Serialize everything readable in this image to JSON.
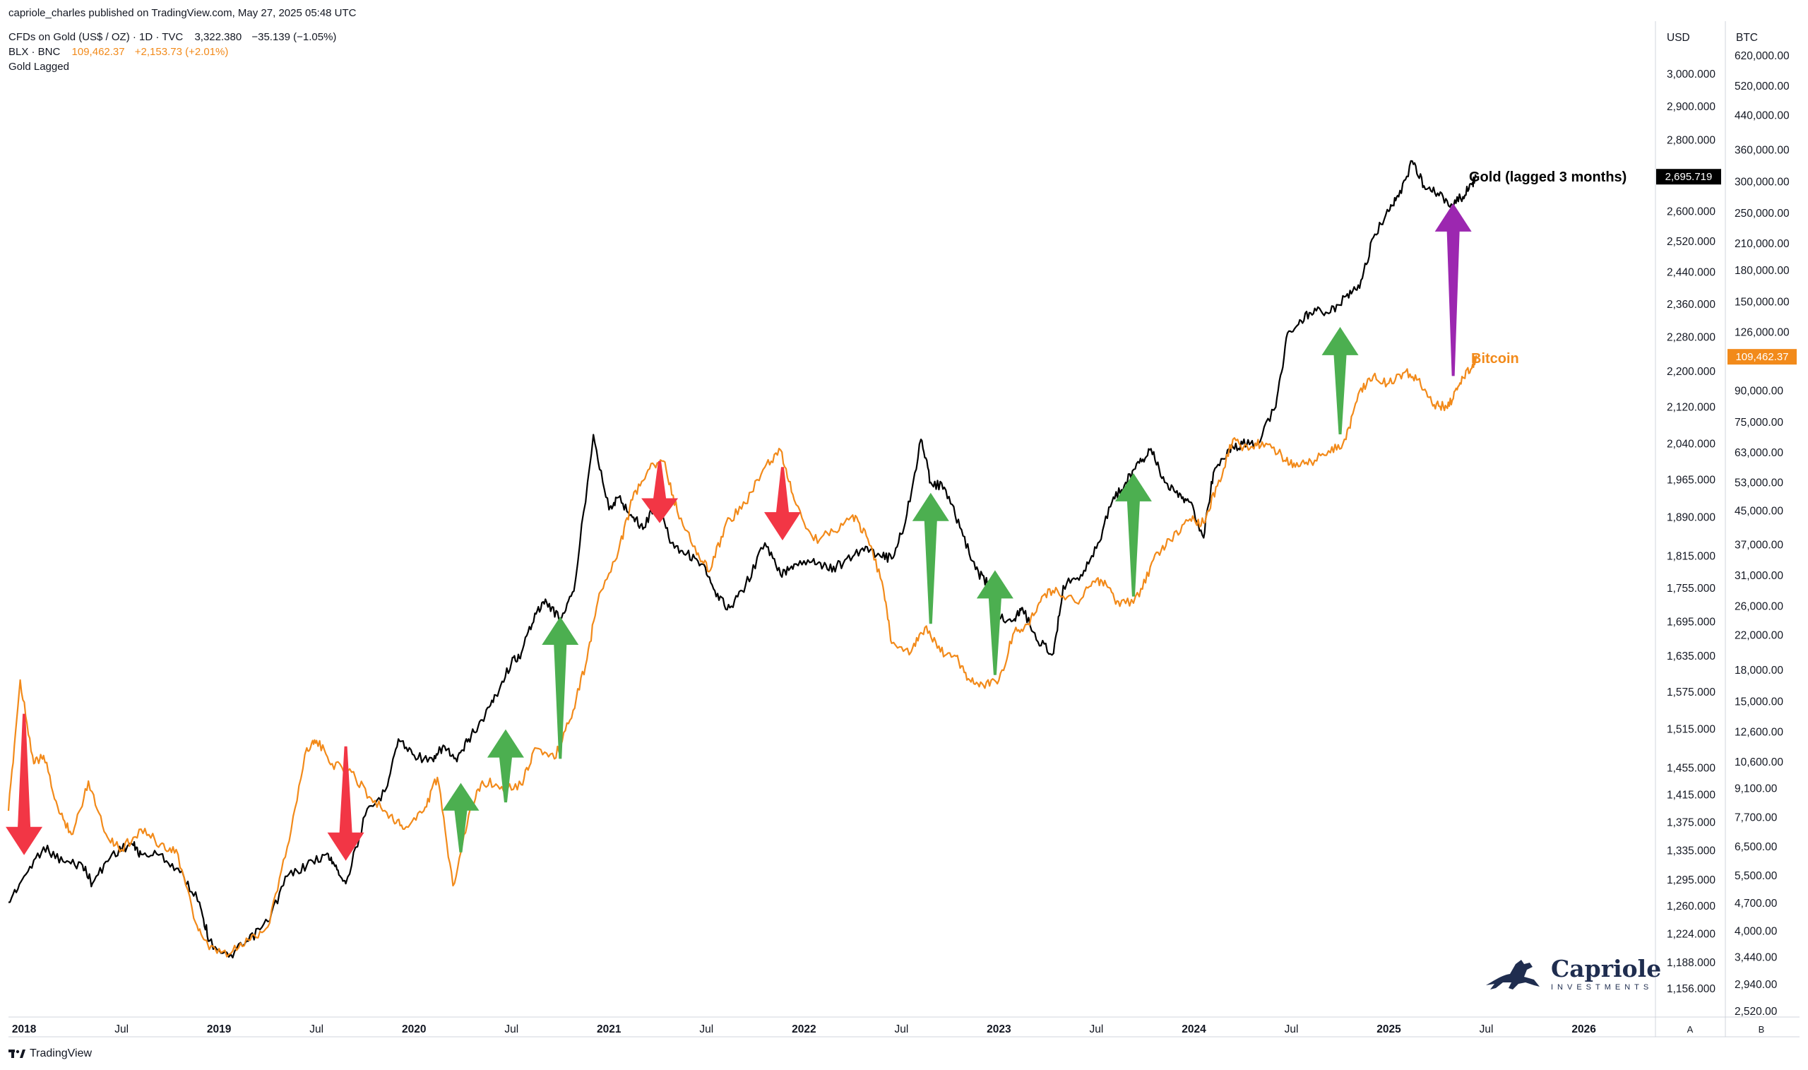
{
  "publisher": "capriole_charles published on TradingView.com, May 27, 2025 05:48 UTC",
  "legend": {
    "gold": {
      "name": "CFDs on Gold (US$ / OZ) · 1D · TVC",
      "price": "3,322.380",
      "change": "−35.139 (−1.05%)"
    },
    "btc": {
      "name": "BLX · BNC",
      "price": "109,462.37",
      "change": "+2,153.73 (+2.01%)"
    },
    "indicator": "Gold Lagged"
  },
  "axis": {
    "usd_label": "USD",
    "btc_label": "BTC",
    "left_foot": "A",
    "right_foot": "B"
  },
  "annotations": {
    "gold_label": "Gold (lagged 3 months)",
    "btc_label": "Bitcoin",
    "question": "?"
  },
  "brand": {
    "name": "Capriole",
    "sub": "INVESTMENTS",
    "tv": "TradingView"
  },
  "colors": {
    "gold": "#000000",
    "btc": "#f28a1a",
    "up": "#4caf50",
    "down": "#f23645",
    "question": "#9c27b0"
  },
  "chart_data": {
    "type": "line",
    "usd_ticks": [
      "3,000.000",
      "2,900.000",
      "2,800.000",
      "2,600.000",
      "2,520.000",
      "2,440.000",
      "2,360.000",
      "2,280.000",
      "2,200.000",
      "2,120.000",
      "2,040.000",
      "1,965.000",
      "1,890.000",
      "1,815.000",
      "1,755.000",
      "1,695.000",
      "1,635.000",
      "1,575.000",
      "1,515.000",
      "1,455.000",
      "1,415.000",
      "1,375.000",
      "1,335.000",
      "1,295.000",
      "1,260.000",
      "1,224.000",
      "1,188.000",
      "1,156.000"
    ],
    "usd_tick_values": [
      3000,
      2900,
      2800,
      2600,
      2520,
      2440,
      2360,
      2280,
      2200,
      2120,
      2040,
      1965,
      1890,
      1815,
      1755,
      1695,
      1635,
      1575,
      1515,
      1455,
      1415,
      1375,
      1335,
      1295,
      1260,
      1224,
      1188,
      1156
    ],
    "btc_ticks": [
      "620,000.00",
      "520,000.00",
      "440,000.00",
      "360,000.00",
      "300,000.00",
      "250,000.00",
      "210,000.00",
      "180,000.00",
      "150,000.00",
      "126,000.00",
      "90,000.00",
      "75,000.00",
      "63,000.00",
      "53,000.00",
      "45,000.00",
      "37,000.00",
      "31,000.00",
      "26,000.00",
      "22,000.00",
      "18,000.00",
      "15,000.00",
      "12,600.00",
      "10,600.00",
      "9,100.00",
      "7,700.00",
      "6,500.00",
      "5,500.00",
      "4,700.00",
      "4,000.00",
      "3,440.00",
      "2,940.00",
      "2,520.00"
    ],
    "btc_tick_values": [
      620000,
      520000,
      440000,
      360000,
      300000,
      250000,
      210000,
      180000,
      150000,
      126000,
      90000,
      75000,
      63000,
      53000,
      45000,
      37000,
      31000,
      26000,
      22000,
      18000,
      15000,
      12600,
      10600,
      9100,
      7700,
      6500,
      5500,
      4700,
      4000,
      3440,
      2940,
      2520
    ],
    "time_ticks": [
      {
        "label": "2018",
        "t": 2018.0,
        "bold": true
      },
      {
        "label": "Jul",
        "t": 2018.5,
        "bold": false
      },
      {
        "label": "2019",
        "t": 2019.0,
        "bold": true
      },
      {
        "label": "Jul",
        "t": 2019.5,
        "bold": false
      },
      {
        "label": "2020",
        "t": 2020.0,
        "bold": true
      },
      {
        "label": "Jul",
        "t": 2020.5,
        "bold": false
      },
      {
        "label": "2021",
        "t": 2021.0,
        "bold": true
      },
      {
        "label": "Jul",
        "t": 2021.5,
        "bold": false
      },
      {
        "label": "2022",
        "t": 2022.0,
        "bold": true
      },
      {
        "label": "Jul",
        "t": 2022.5,
        "bold": false
      },
      {
        "label": "2023",
        "t": 2023.0,
        "bold": true
      },
      {
        "label": "Jul",
        "t": 2023.5,
        "bold": false
      },
      {
        "label": "2024",
        "t": 2024.0,
        "bold": true
      },
      {
        "label": "Jul",
        "t": 2024.5,
        "bold": false
      },
      {
        "label": "2025",
        "t": 2025.0,
        "bold": true
      },
      {
        "label": "Jul",
        "t": 2025.5,
        "bold": false
      },
      {
        "label": "2026",
        "t": 2026.0,
        "bold": true
      }
    ],
    "series": [
      {
        "name": "Gold (lagged 3 months)",
        "axis": "USD",
        "last_label": "2,695.719",
        "points": [
          [
            2017.92,
            1265
          ],
          [
            2018.0,
            1300
          ],
          [
            2018.1,
            1340
          ],
          [
            2018.2,
            1320
          ],
          [
            2018.3,
            1315
          ],
          [
            2018.35,
            1290
          ],
          [
            2018.45,
            1330
          ],
          [
            2018.55,
            1345
          ],
          [
            2018.6,
            1330
          ],
          [
            2018.7,
            1330
          ],
          [
            2018.8,
            1305
          ],
          [
            2018.9,
            1265
          ],
          [
            2018.95,
            1215
          ],
          [
            2019.05,
            1195
          ],
          [
            2019.15,
            1215
          ],
          [
            2019.25,
            1240
          ],
          [
            2019.35,
            1300
          ],
          [
            2019.45,
            1315
          ],
          [
            2019.55,
            1330
          ],
          [
            2019.6,
            1315
          ],
          [
            2019.65,
            1290
          ],
          [
            2019.75,
            1385
          ],
          [
            2019.85,
            1420
          ],
          [
            2019.92,
            1500
          ],
          [
            2020.0,
            1475
          ],
          [
            2020.1,
            1465
          ],
          [
            2020.15,
            1490
          ],
          [
            2020.22,
            1465
          ],
          [
            2020.28,
            1500
          ],
          [
            2020.35,
            1530
          ],
          [
            2020.42,
            1570
          ],
          [
            2020.5,
            1625
          ],
          [
            2020.55,
            1640
          ],
          [
            2020.62,
            1710
          ],
          [
            2020.68,
            1730
          ],
          [
            2020.75,
            1700
          ],
          [
            2020.82,
            1750
          ],
          [
            2020.92,
            2060
          ],
          [
            2021.0,
            1905
          ],
          [
            2021.05,
            1930
          ],
          [
            2021.12,
            1890
          ],
          [
            2021.18,
            1870
          ],
          [
            2021.25,
            1930
          ],
          [
            2021.32,
            1840
          ],
          [
            2021.4,
            1820
          ],
          [
            2021.48,
            1800
          ],
          [
            2021.55,
            1740
          ],
          [
            2021.62,
            1720
          ],
          [
            2021.7,
            1760
          ],
          [
            2021.8,
            1840
          ],
          [
            2021.88,
            1780
          ],
          [
            2021.95,
            1800
          ],
          [
            2022.05,
            1810
          ],
          [
            2022.12,
            1790
          ],
          [
            2022.2,
            1800
          ],
          [
            2022.3,
            1830
          ],
          [
            2022.38,
            1820
          ],
          [
            2022.45,
            1810
          ],
          [
            2022.52,
            1880
          ],
          [
            2022.6,
            2050
          ],
          [
            2022.65,
            1960
          ],
          [
            2022.72,
            1950
          ],
          [
            2022.8,
            1870
          ],
          [
            2022.88,
            1790
          ],
          [
            2022.95,
            1760
          ],
          [
            2023.0,
            1700
          ],
          [
            2023.08,
            1700
          ],
          [
            2023.12,
            1720
          ],
          [
            2023.2,
            1660
          ],
          [
            2023.28,
            1640
          ],
          [
            2023.33,
            1760
          ],
          [
            2023.42,
            1780
          ],
          [
            2023.5,
            1830
          ],
          [
            2023.58,
            1920
          ],
          [
            2023.65,
            1960
          ],
          [
            2023.72,
            2000
          ],
          [
            2023.78,
            2030
          ],
          [
            2023.85,
            1960
          ],
          [
            2023.92,
            1930
          ],
          [
            2023.98,
            1920
          ],
          [
            2024.05,
            1850
          ],
          [
            2024.1,
            1980
          ],
          [
            2024.18,
            2030
          ],
          [
            2024.25,
            2040
          ],
          [
            2024.32,
            2040
          ],
          [
            2024.42,
            2120
          ],
          [
            2024.48,
            2290
          ],
          [
            2024.55,
            2320
          ],
          [
            2024.62,
            2350
          ],
          [
            2024.7,
            2340
          ],
          [
            2024.78,
            2380
          ],
          [
            2024.85,
            2400
          ],
          [
            2024.92,
            2530
          ],
          [
            2025.0,
            2600
          ],
          [
            2025.05,
            2640
          ],
          [
            2025.12,
            2740
          ],
          [
            2025.18,
            2670
          ],
          [
            2025.25,
            2650
          ],
          [
            2025.32,
            2620
          ],
          [
            2025.38,
            2640
          ],
          [
            2025.43,
            2680
          ],
          [
            2025.45,
            2695.719
          ]
        ]
      },
      {
        "name": "Bitcoin",
        "axis": "BTC",
        "last_label": "109,462.37",
        "points": [
          [
            2017.92,
            8000
          ],
          [
            2017.98,
            17000
          ],
          [
            2018.05,
            10500
          ],
          [
            2018.1,
            11000
          ],
          [
            2018.18,
            7900
          ],
          [
            2018.25,
            7000
          ],
          [
            2018.33,
            9500
          ],
          [
            2018.42,
            7000
          ],
          [
            2018.5,
            6400
          ],
          [
            2018.6,
            7200
          ],
          [
            2018.7,
            6600
          ],
          [
            2018.78,
            6400
          ],
          [
            2018.88,
            4200
          ],
          [
            2018.95,
            3600
          ],
          [
            2019.05,
            3500
          ],
          [
            2019.15,
            3800
          ],
          [
            2019.25,
            4100
          ],
          [
            2019.35,
            6500
          ],
          [
            2019.45,
            11500
          ],
          [
            2019.5,
            12000
          ],
          [
            2019.58,
            10500
          ],
          [
            2019.68,
            10000
          ],
          [
            2019.78,
            8600
          ],
          [
            2019.88,
            7800
          ],
          [
            2019.95,
            7200
          ],
          [
            2020.05,
            8000
          ],
          [
            2020.12,
            9700
          ],
          [
            2020.2,
            5200
          ],
          [
            2020.28,
            7800
          ],
          [
            2020.35,
            9500
          ],
          [
            2020.45,
            9200
          ],
          [
            2020.55,
            9300
          ],
          [
            2020.62,
            11500
          ],
          [
            2020.72,
            10800
          ],
          [
            2020.8,
            13500
          ],
          [
            2020.88,
            18500
          ],
          [
            2020.95,
            28000
          ],
          [
            2021.05,
            36000
          ],
          [
            2021.12,
            48000
          ],
          [
            2021.2,
            57000
          ],
          [
            2021.28,
            60000
          ],
          [
            2021.35,
            45000
          ],
          [
            2021.45,
            35000
          ],
          [
            2021.52,
            32000
          ],
          [
            2021.6,
            42000
          ],
          [
            2021.7,
            47000
          ],
          [
            2021.8,
            58000
          ],
          [
            2021.88,
            64000
          ],
          [
            2021.95,
            48000
          ],
          [
            2022.05,
            38000
          ],
          [
            2022.15,
            40000
          ],
          [
            2022.25,
            44000
          ],
          [
            2022.32,
            39000
          ],
          [
            2022.4,
            30000
          ],
          [
            2022.45,
            21000
          ],
          [
            2022.55,
            20000
          ],
          [
            2022.62,
            23000
          ],
          [
            2022.7,
            20000
          ],
          [
            2022.78,
            19500
          ],
          [
            2022.85,
            17000
          ],
          [
            2022.92,
            16500
          ],
          [
            2023.0,
            17000
          ],
          [
            2023.08,
            22500
          ],
          [
            2023.15,
            23500
          ],
          [
            2023.22,
            27500
          ],
          [
            2023.3,
            28500
          ],
          [
            2023.4,
            26500
          ],
          [
            2023.48,
            30000
          ],
          [
            2023.55,
            29500
          ],
          [
            2023.62,
            26000
          ],
          [
            2023.72,
            27500
          ],
          [
            2023.8,
            35000
          ],
          [
            2023.88,
            38000
          ],
          [
            2023.98,
            43000
          ],
          [
            2024.05,
            42000
          ],
          [
            2024.12,
            52000
          ],
          [
            2024.2,
            68000
          ],
          [
            2024.28,
            64000
          ],
          [
            2024.35,
            67000
          ],
          [
            2024.45,
            62000
          ],
          [
            2024.52,
            58000
          ],
          [
            2024.6,
            60000
          ],
          [
            2024.7,
            63000
          ],
          [
            2024.78,
            68000
          ],
          [
            2024.85,
            90000
          ],
          [
            2024.92,
            98000
          ],
          [
            2025.0,
            94000
          ],
          [
            2025.08,
            100000
          ],
          [
            2025.15,
            96000
          ],
          [
            2025.22,
            84000
          ],
          [
            2025.28,
            82000
          ],
          [
            2025.33,
            86000
          ],
          [
            2025.38,
            97000
          ],
          [
            2025.43,
            105000
          ],
          [
            2025.45,
            109462.37
          ]
        ]
      }
    ],
    "arrows": [
      {
        "color": "down",
        "t": 2018.0,
        "from_btc": 14000,
        "to_btc": 6200
      },
      {
        "color": "down",
        "t": 2019.65,
        "from_btc": 11600,
        "to_btc": 6000
      },
      {
        "color": "up",
        "t": 2020.24,
        "from_btc": 6300,
        "to_btc": 9400
      },
      {
        "color": "up",
        "t": 2020.47,
        "from_btc": 8400,
        "to_btc": 12800
      },
      {
        "color": "up",
        "t": 2020.75,
        "from_btc": 10800,
        "to_btc": 24500
      },
      {
        "color": "down",
        "t": 2021.26,
        "from_btc": 60000,
        "to_btc": 42000
      },
      {
        "color": "down",
        "t": 2021.89,
        "from_btc": 58000,
        "to_btc": 38000
      },
      {
        "color": "up",
        "t": 2022.65,
        "from_btc": 23500,
        "to_btc": 50000
      },
      {
        "color": "up",
        "t": 2022.98,
        "from_btc": 17500,
        "to_btc": 32000
      },
      {
        "color": "up",
        "t": 2023.69,
        "from_btc": 27500,
        "to_btc": 56000
      },
      {
        "color": "up",
        "t": 2024.75,
        "from_btc": 70000,
        "to_btc": 130000
      },
      {
        "color": "question",
        "t": 2025.33,
        "from_btc": 98000,
        "to_btc": 265000
      }
    ]
  }
}
